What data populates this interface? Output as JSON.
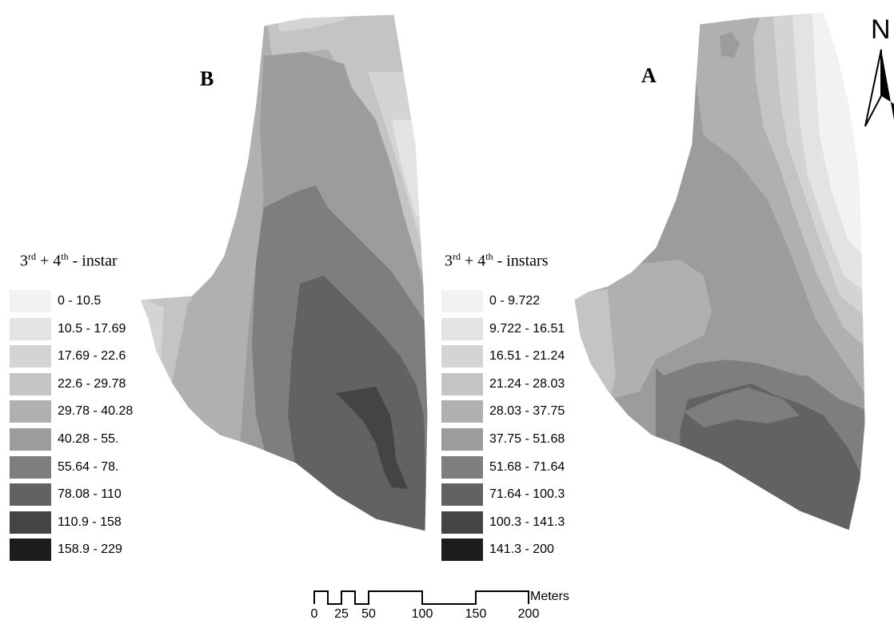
{
  "panels": [
    {
      "letter": "B",
      "legend_title": {
        "base": "3",
        "sup1": "rd",
        "mid": " + 4",
        "sup2": "th",
        "tail": " - instar"
      },
      "classes": [
        {
          "label": "0 - 10.5",
          "color": "#f2f2f2"
        },
        {
          "label": "10.5 - 17.69",
          "color": "#e3e3e3"
        },
        {
          "label": "17.69 - 22.6",
          "color": "#d4d4d4"
        },
        {
          "label": "22.6 - 29.78",
          "color": "#c4c4c4"
        },
        {
          "label": "29.78 - 40.28",
          "color": "#b0b0b0"
        },
        {
          "label": "40.28 - 55.",
          "color": "#9c9c9c"
        },
        {
          "label": "55.64 - 78.",
          "color": "#7e7e7e"
        },
        {
          "label": "78.08 - 110",
          "color": "#626262"
        },
        {
          "label": "110.9 - 158",
          "color": "#444444"
        },
        {
          "label": "158.9 - 229",
          "color": "#1c1c1c"
        }
      ]
    },
    {
      "letter": "A",
      "legend_title": {
        "base": "3",
        "sup1": "rd",
        "mid": " + 4",
        "sup2": "th",
        "tail": " - instars"
      },
      "classes": [
        {
          "label": "0 - 9.722",
          "color": "#f2f2f2"
        },
        {
          "label": "9.722 - 16.51",
          "color": "#e3e3e3"
        },
        {
          "label": "16.51 - 21.24",
          "color": "#d4d4d4"
        },
        {
          "label": "21.24 - 28.03",
          "color": "#c4c4c4"
        },
        {
          "label": "28.03 - 37.75",
          "color": "#b0b0b0"
        },
        {
          "label": "37.75 - 51.68",
          "color": "#9c9c9c"
        },
        {
          "label": "51.68 - 71.64",
          "color": "#7e7e7e"
        },
        {
          "label": "71.64 - 100.3",
          "color": "#626262"
        },
        {
          "label": "100.3 - 141.3",
          "color": "#444444"
        },
        {
          "label": "141.3 - 200",
          "color": "#1c1c1c"
        }
      ]
    }
  ],
  "scale_bar": {
    "unit": "Meters",
    "ticks": [
      "0",
      "25",
      "50",
      "100",
      "150",
      "200"
    ]
  },
  "north_arrow": {
    "letter": "N",
    "icon": "north-arrow-icon"
  }
}
